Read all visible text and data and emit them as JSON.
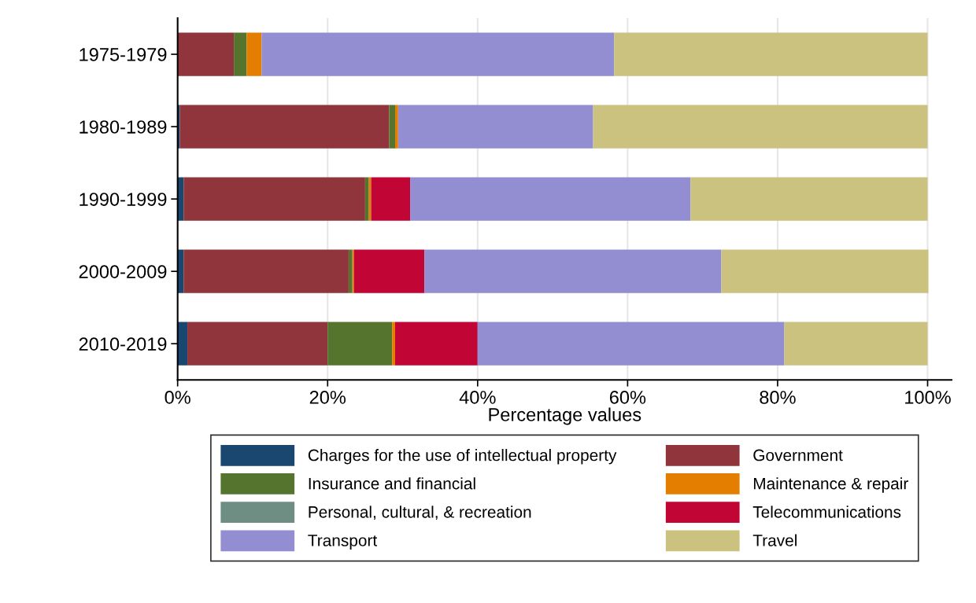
{
  "chart_data": {
    "type": "bar",
    "orientation": "horizontal",
    "stacked": true,
    "xlabel": "Percentage values",
    "categories": [
      "1975-1979",
      "1980-1989",
      "1990-1999",
      "2000-2009",
      "2010-2019"
    ],
    "series": [
      {
        "name": "Charges for the use of intellectual property",
        "color": "#1a476f",
        "values": [
          0,
          0.3,
          0.8,
          0.8,
          1.3
        ]
      },
      {
        "name": "Government",
        "color": "#90353b",
        "values": [
          7.5,
          27.9,
          24.2,
          22.0,
          18.7
        ]
      },
      {
        "name": "Insurance and financial",
        "color": "#55752f",
        "values": [
          1.7,
          0.8,
          0.5,
          0.5,
          8.6
        ]
      },
      {
        "name": "Maintenance & repair",
        "color": "#e37e00",
        "values": [
          2.0,
          0.4,
          0.3,
          0.2,
          0.4
        ]
      },
      {
        "name": "Personal, cultural, & recreation",
        "color": "#6e8e84",
        "values": [
          0,
          0,
          0,
          0,
          0
        ]
      },
      {
        "name": "Telecommunications",
        "color": "#c10534",
        "values": [
          0,
          0,
          5.2,
          9.4,
          11.0
        ]
      },
      {
        "name": "Transport",
        "color": "#938dd2",
        "values": [
          47.0,
          26.0,
          37.4,
          39.6,
          40.9
        ]
      },
      {
        "name": "Travel",
        "color": "#cac27e",
        "values": [
          41.8,
          44.6,
          31.6,
          27.6,
          19.1
        ]
      }
    ],
    "xlim": [
      0,
      103.2
    ],
    "xticks": [
      {
        "value": 0,
        "label": "0%"
      },
      {
        "value": 20,
        "label": "20%"
      },
      {
        "value": 40,
        "label": "40%"
      },
      {
        "value": 60,
        "label": "60%"
      },
      {
        "value": 80,
        "label": "80%"
      },
      {
        "value": 100,
        "label": "100%"
      }
    ],
    "grid": "x",
    "legend": "bottom"
  }
}
